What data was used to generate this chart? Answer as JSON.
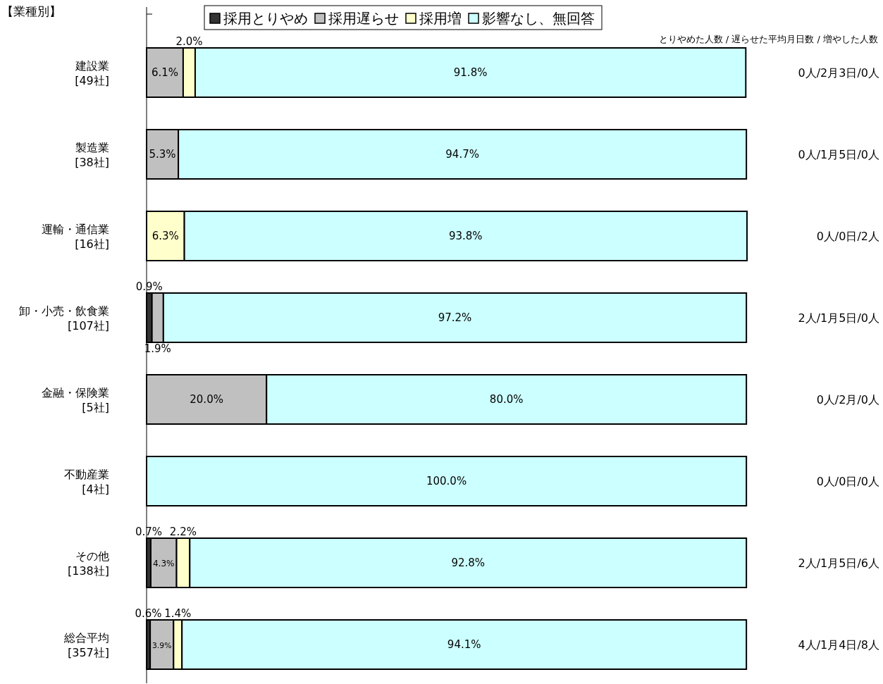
{
  "chart_data": {
    "type": "bar",
    "orientation": "horizontal",
    "stacked": true,
    "title": "【業種別】",
    "categories": [
      "建設業 [49社]",
      "製造業 [38社]",
      "運輸・通信業 [16社]",
      "卸・小売・飲食業 [107社]",
      "金融・保険業 [5社]",
      "不動産業 [4社]",
      "その他 [138社]",
      "総合平均 [357社]"
    ],
    "series": [
      {
        "name": "採用とりやめ",
        "color": "#333333",
        "values": [
          null,
          null,
          null,
          0.9,
          null,
          null,
          0.7,
          0.6
        ],
        "value_labels": [
          null,
          null,
          null,
          "0.9%",
          null,
          null,
          "0.7%",
          "0.6%"
        ]
      },
      {
        "name": "採用遅らせ",
        "color": "#c0c0c0",
        "values": [
          6.1,
          5.3,
          null,
          1.9,
          20.0,
          null,
          4.3,
          3.9
        ],
        "value_labels": [
          "6.1%",
          "5.3%",
          null,
          "1.9%",
          "20.0%",
          null,
          "4.3%",
          "3.9%"
        ]
      },
      {
        "name": "採用増",
        "color": "#ffffcc",
        "values": [
          2.0,
          null,
          6.3,
          null,
          null,
          null,
          2.2,
          1.4
        ],
        "value_labels": [
          "2.0%",
          null,
          "6.3%",
          null,
          null,
          null,
          "2.2%",
          "1.4%"
        ]
      },
      {
        "name": "影響なし、無回答",
        "color": "#ccffff",
        "values": [
          91.8,
          94.7,
          93.8,
          97.2,
          80.0,
          100.0,
          92.8,
          94.1
        ],
        "value_labels": [
          "91.8%",
          "94.7%",
          "93.8%",
          "97.2%",
          "80.0%",
          "100.0%",
          "92.8%",
          "94.1%"
        ]
      }
    ],
    "annotations": [
      "とりやめた人数 / 遅らせた平均月日数 / 増やした人数",
      "0人/2月3日/0人",
      "0人/1月5日/0人",
      "0人/0日/2人",
      "2人/1月5日/0人",
      "0人/2月/0人",
      "0人/0日/0人",
      "2人/1月5日/6人",
      "4人/1月4日/8人"
    ],
    "legend": "top"
  }
}
